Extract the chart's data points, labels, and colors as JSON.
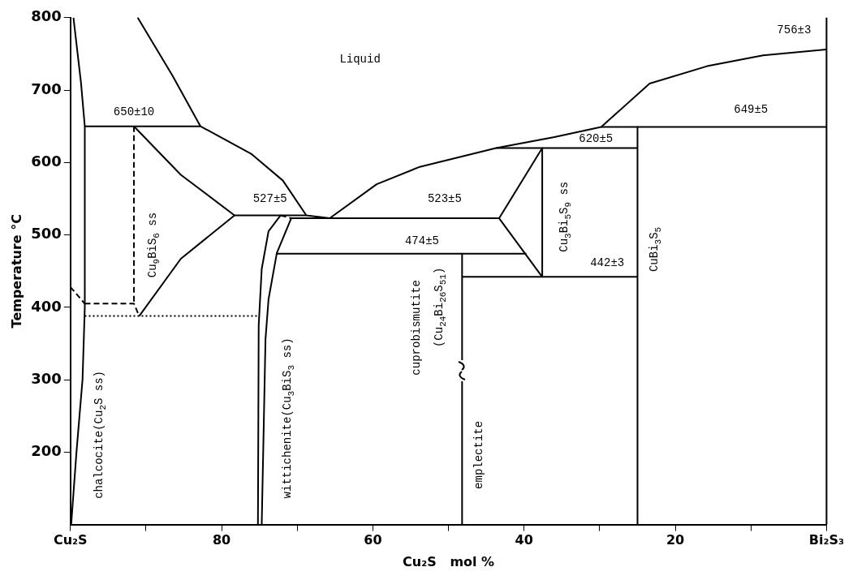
{
  "chart_data": {
    "type": "line",
    "xlabel": "Cu₂S   mol %",
    "ylabel": "Temperature °C",
    "xlim": [
      100,
      0
    ],
    "ylim": [
      100,
      800
    ],
    "xticks": [
      {
        "value": 100,
        "label": "Cu₂S"
      },
      {
        "value": 90,
        "label": null
      },
      80,
      {
        "value": 70,
        "label": null
      },
      60,
      {
        "value": 50,
        "label": null
      },
      40,
      {
        "value": 30,
        "label": null
      },
      20,
      {
        "value": 10,
        "label": null
      },
      {
        "value": 0,
        "label": "Bi₂S₃"
      }
    ],
    "yticks": [
      200,
      300,
      400,
      500,
      600,
      700,
      800
    ],
    "grid": false,
    "legend": false,
    "marker": "none",
    "series": [
      {
        "color": "#000000",
        "x": [
          99.6,
          98.6,
          98.1,
          98.1,
          98.4,
          99.2,
          99.9
        ],
        "values": [
          800,
          710,
          650,
          400,
          300,
          200,
          100
        ]
      },
      {
        "color": "#000000",
        "x": [
          98.1,
          82.8
        ],
        "values": [
          650,
          650
        ]
      },
      {
        "color": "#000000",
        "x": [
          91.1,
          86.5,
          82.8
        ],
        "values": [
          800,
          720,
          650
        ]
      },
      {
        "color": "#000000",
        "x": [
          82.8,
          76.1,
          71.9,
          68.8,
          65.7
        ],
        "values": [
          650,
          612,
          575,
          527,
          523
        ]
      },
      {
        "color": "#000000",
        "x": [
          65.7,
          59.5,
          53.8,
          43.7,
          36,
          29.8,
          23.4,
          15.8,
          8.4,
          0
        ],
        "values": [
          523,
          570,
          594,
          620,
          635,
          649,
          709,
          733,
          748,
          756
        ]
      },
      {
        "color": "#000000",
        "x": [
          43.7,
          25
        ],
        "values": [
          620,
          620
        ]
      },
      {
        "color": "#000000",
        "x": [
          29.8,
          0
        ],
        "values": [
          649,
          649
        ]
      },
      {
        "color": "#000000",
        "x": [
          25,
          25
        ],
        "values": [
          649,
          100
        ]
      },
      {
        "color": "#000000",
        "x": [
          37.6,
          37.6
        ],
        "values": [
          620,
          442
        ]
      },
      {
        "color": "#000000",
        "x": [
          37.6,
          43.3,
          37.6
        ],
        "values": [
          620,
          523,
          442
        ]
      },
      {
        "color": "#000000",
        "x": [
          48.2,
          25
        ],
        "values": [
          442,
          442
        ]
      },
      {
        "color": "#000000",
        "x": [
          70.8,
          43.3
        ],
        "values": [
          523,
          523
        ]
      },
      {
        "color": "#000000",
        "x": [
          72.8,
          39.7
        ],
        "values": [
          474,
          474
        ]
      },
      {
        "color": "#000000",
        "x": [
          48.2,
          48.2
        ],
        "values": [
          474,
          100
        ]
      },
      {
        "color": "#000000",
        "x": [
          78.3,
          68.8
        ],
        "values": [
          527,
          527
        ]
      },
      {
        "color": "#000000",
        "x": [
          91.6,
          85.4,
          78.3
        ],
        "values": [
          650,
          583,
          527
        ]
      },
      {
        "color": "#000000",
        "x": [
          78.3,
          85.4,
          90.9
        ],
        "values": [
          527,
          467,
          388
        ]
      },
      {
        "color": "#000000",
        "line_style": "dashed",
        "x": [
          91.6,
          91.6
        ],
        "values": [
          650,
          405
        ]
      },
      {
        "color": "#000000",
        "line_style": "dashed",
        "x": [
          98.1,
          91.6,
          90.9
        ],
        "values": [
          405,
          405,
          388
        ]
      },
      {
        "color": "#000000",
        "line_style": "dashed",
        "x": [
          100,
          98.1
        ],
        "values": [
          428,
          405
        ]
      },
      {
        "color": "#000000",
        "line_style": "dotted",
        "x": [
          98.1,
          75.1
        ],
        "values": [
          388,
          388
        ]
      },
      {
        "color": "#000000",
        "x": [
          72.2,
          73.8,
          74.7,
          75.1,
          75.2
        ],
        "values": [
          527,
          505,
          453,
          375,
          100
        ]
      },
      {
        "color": "#000000",
        "x": [
          70.8,
          72.7,
          73.8,
          74.2,
          74.7
        ],
        "values": [
          523,
          475,
          411,
          356,
          100
        ]
      },
      {
        "color": "#000000",
        "line_style": "dashed",
        "x": [
          72.2,
          70.8
        ],
        "values": [
          527,
          523
        ]
      }
    ],
    "annotations": [
      "Liquid",
      "650±10",
      "527±5",
      "523±5",
      "474±5",
      "620±5",
      "649±5",
      "756±3",
      "442±3",
      "Cu$_{9}$BiS$_{6}$ ss",
      "Cu$_{3}$Bi$_{5}$S$_{9}$ ss",
      "chalcocite(Cu$_{2}$S ss)",
      "wittichenite(Cu$_{3}$BiS$_{3}$ ss)",
      "cuprobismutite",
      "(Cu$_{24}$Bi$_{26}$S$_{51}$)",
      "emplectite",
      "CuBi$_{3}$S$_{5}$"
    ]
  }
}
